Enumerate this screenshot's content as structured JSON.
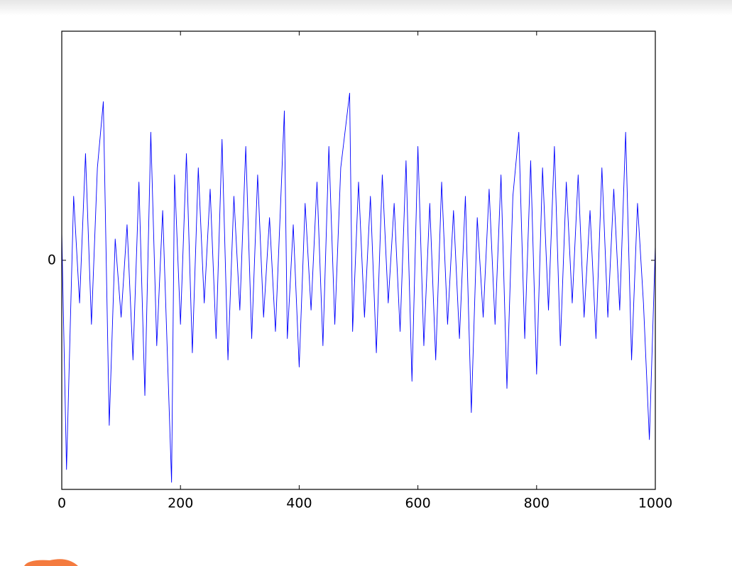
{
  "chart_data": {
    "type": "line",
    "x": [
      0,
      8,
      20,
      30,
      40,
      50,
      60,
      70,
      80,
      90,
      100,
      110,
      120,
      130,
      140,
      150,
      160,
      170,
      185,
      190,
      200,
      210,
      220,
      230,
      240,
      250,
      260,
      270,
      280,
      290,
      300,
      310,
      320,
      330,
      340,
      350,
      360,
      375,
      380,
      390,
      400,
      410,
      420,
      430,
      440,
      450,
      460,
      470,
      485,
      490,
      500,
      510,
      520,
      530,
      540,
      550,
      560,
      570,
      580,
      590,
      600,
      610,
      620,
      630,
      640,
      650,
      660,
      670,
      680,
      690,
      700,
      710,
      720,
      730,
      740,
      750,
      760,
      770,
      780,
      790,
      800,
      810,
      820,
      830,
      840,
      850,
      860,
      870,
      880,
      890,
      900,
      910,
      920,
      930,
      940,
      950,
      960,
      970,
      980,
      990,
      1000
    ],
    "series": [
      {
        "color": "#0000ff",
        "values": [
          0.4,
          -2.94,
          0.9,
          -0.6,
          1.5,
          -0.9,
          1.3,
          2.23,
          -2.32,
          0.3,
          -0.8,
          0.5,
          -1.4,
          1.1,
          -1.9,
          1.8,
          -1.2,
          0.7,
          -3.12,
          1.2,
          -0.9,
          1.5,
          -1.3,
          1.3,
          -0.6,
          1.0,
          -1.1,
          1.7,
          -1.4,
          0.9,
          -0.7,
          1.6,
          -1.1,
          1.2,
          -0.8,
          0.6,
          -1.0,
          2.1,
          -1.1,
          0.5,
          -1.5,
          0.8,
          -0.7,
          1.1,
          -1.2,
          1.6,
          -0.9,
          1.3,
          2.35,
          -1.0,
          1.1,
          -0.8,
          0.9,
          -1.3,
          1.2,
          -0.6,
          0.8,
          -1.0,
          1.4,
          -1.7,
          1.6,
          -1.2,
          0.8,
          -1.4,
          1.1,
          -0.9,
          0.7,
          -1.1,
          0.9,
          -2.14,
          0.6,
          -0.8,
          1.0,
          -0.9,
          1.2,
          -1.8,
          0.9,
          1.8,
          -1.1,
          1.4,
          -1.6,
          1.3,
          -0.7,
          1.6,
          -1.2,
          1.1,
          -0.6,
          1.2,
          -0.8,
          0.7,
          -1.1,
          1.3,
          -0.8,
          1.0,
          -0.7,
          1.8,
          -1.4,
          0.8,
          -0.6,
          -2.52,
          0.2
        ]
      }
    ],
    "xlim": [
      0,
      1000
    ],
    "xticks": [
      0,
      200,
      400,
      600,
      800,
      1000
    ],
    "ylim": [
      -3.22,
      3.22
    ],
    "yticks": [
      0
    ]
  }
}
